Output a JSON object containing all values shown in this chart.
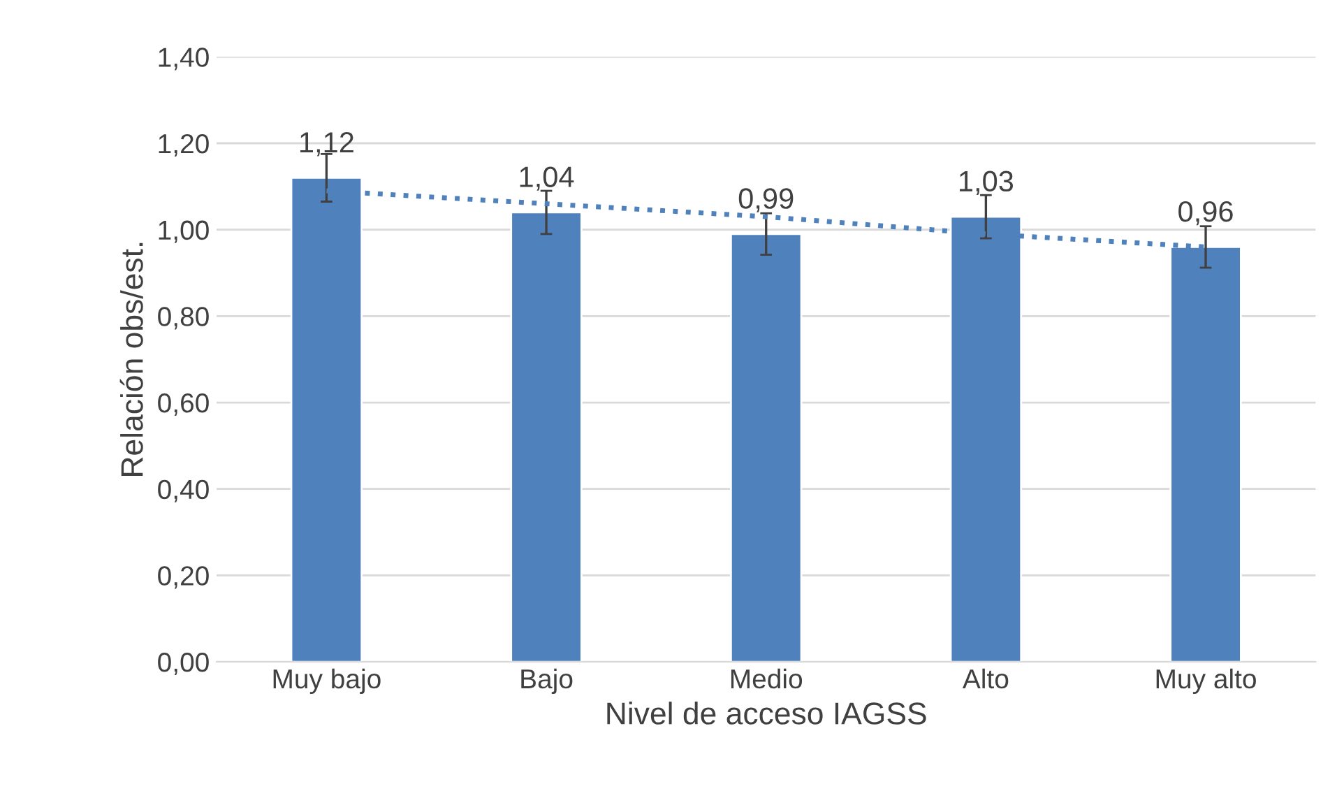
{
  "chart_data": {
    "type": "bar",
    "xlabel": "Nivel de acceso IAGSS",
    "ylabel": "Relación obs/est.",
    "categories": [
      "Muy bajo",
      "Bajo",
      "Medio",
      "Alto",
      "Muy alto"
    ],
    "series": [
      {
        "color": "#4f81bd",
        "values": [
          1.12,
          1.04,
          0.99,
          1.03,
          0.96
        ],
        "errors": [
          0.055,
          0.05,
          0.048,
          0.05,
          0.048
        ],
        "value_labels": [
          "1,12",
          "1,04",
          "0,99",
          "1,03",
          "0,96"
        ]
      },
      {
        "type": "line",
        "color": "#4f81bd",
        "line_style": "dotted",
        "values": [
          1.09,
          1.06,
          1.03,
          0.99,
          0.96
        ]
      }
    ],
    "ylim": [
      0,
      1.4
    ],
    "yticks": [
      {
        "value": 0,
        "label": "0,00"
      },
      {
        "value": 0.2,
        "label": "0,20"
      },
      {
        "value": 0.4,
        "label": "0,40"
      },
      {
        "value": 0.6,
        "label": "0,60"
      },
      {
        "value": 0.8,
        "label": "0,80"
      },
      {
        "value": 1.0,
        "label": "1,00"
      },
      {
        "value": 1.2,
        "label": "1,20"
      },
      {
        "value": 1.4,
        "label": "1,40"
      }
    ],
    "grid": "y",
    "legend": false
  }
}
